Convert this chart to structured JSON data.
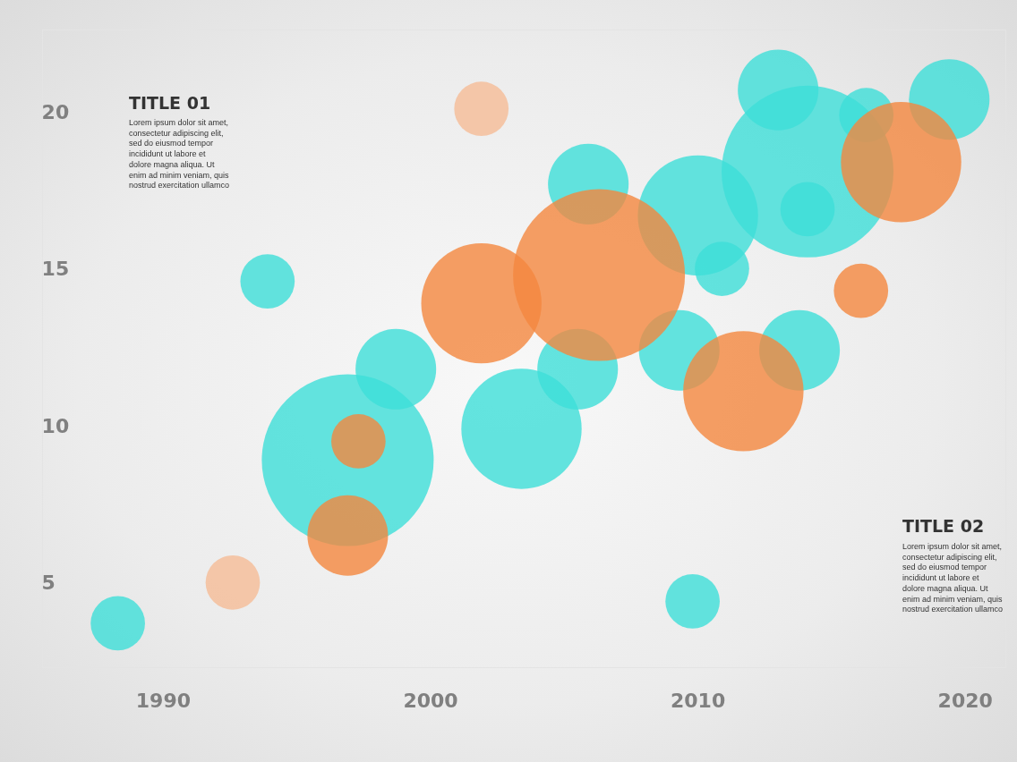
{
  "chart_data": {
    "type": "bubble",
    "xlim": [
      1985.5,
      2021.5
    ],
    "ylim": [
      2.3,
      22.6
    ],
    "xticks": [
      1990,
      2000,
      2010,
      2020
    ],
    "yticks": [
      5,
      10,
      15,
      20
    ],
    "series": [
      {
        "color": "#3ddfd8",
        "x": [
          1988.3,
          1993.9,
          1996.9,
          1998.7,
          2003.4,
          2005.5,
          2005.9,
          2010.0,
          2010.9,
          2009.3,
          2013.8,
          2009.8,
          2014.1,
          2014.1,
          2013.0,
          2016.3,
          2019.4
        ],
        "values": [
          3.7,
          14.6,
          8.9,
          11.8,
          9.9,
          11.8,
          17.7,
          16.7,
          15.0,
          12.4,
          12.4,
          4.4,
          18.1,
          16.9,
          20.7,
          19.9,
          20.4
        ],
        "sizes": [
          0.1,
          0.1,
          1,
          0.22,
          0.49,
          0.22,
          0.22,
          0.49,
          0.1,
          0.22,
          0.22,
          0.1,
          1,
          0.1,
          0.22,
          0.1,
          0.22
        ]
      },
      {
        "colors": [
          "#f5bc96",
          "#f4873f",
          "#f4873f",
          "#f5bc96",
          "#f4873f",
          "#f4873f",
          "#f4873f",
          "#f4873f",
          "#f4873f"
        ],
        "x": [
          1992.6,
          1996.9,
          1997.3,
          2001.9,
          2001.9,
          2006.3,
          2011.7,
          2016.1,
          2017.6
        ],
        "values": [
          5.0,
          6.5,
          9.5,
          20.1,
          13.9,
          14.8,
          11.1,
          14.3,
          18.4
        ],
        "sizes": [
          0.1,
          0.22,
          0.1,
          0.1,
          0.49,
          1,
          0.49,
          0.1,
          0.49
        ]
      }
    ],
    "annotations": [
      "TITLE 01",
      "Lorem ipsum dolor sit amet,\nconsectetur adipiscing elit,\nsed do eiusmod tempor\nincididunt ut labore et\ndolore magna aliqua. Ut\nenim ad minim veniam, quis\nnostrud exercitation ullamco",
      "TITLE 02",
      "Lorem ipsum dolor sit amet,\nconsectetur adipiscing elit,\nsed do eiusmod tempor\nincididunt ut labore et\ndolore magna aliqua. Ut\nenim ad minim veniam, quis\nnostrud exercitation ullamco"
    ]
  }
}
